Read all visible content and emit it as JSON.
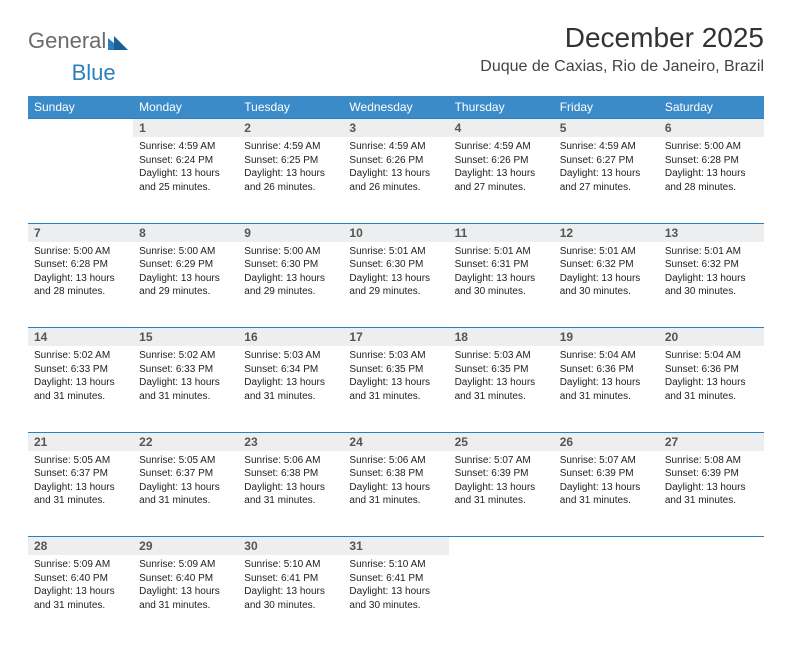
{
  "brand": {
    "part1": "General",
    "part2": "Blue",
    "logo_color": "#2a7fbf",
    "text_color": "#6b6b6b"
  },
  "title": "December 2025",
  "location": "Duque de Caxias, Rio de Janeiro, Brazil",
  "colors": {
    "header_bg": "#3b8bc9",
    "header_text": "#ffffff",
    "daynum_bg": "#eceeef",
    "accent_border": "#2a7fbf",
    "page_bg": "#ffffff"
  },
  "weekdays": [
    "Sunday",
    "Monday",
    "Tuesday",
    "Wednesday",
    "Thursday",
    "Friday",
    "Saturday"
  ],
  "weeks": [
    [
      null,
      {
        "n": "1",
        "sr": "Sunrise: 4:59 AM",
        "ss": "Sunset: 6:24 PM",
        "d1": "Daylight: 13 hours",
        "d2": "and 25 minutes."
      },
      {
        "n": "2",
        "sr": "Sunrise: 4:59 AM",
        "ss": "Sunset: 6:25 PM",
        "d1": "Daylight: 13 hours",
        "d2": "and 26 minutes."
      },
      {
        "n": "3",
        "sr": "Sunrise: 4:59 AM",
        "ss": "Sunset: 6:26 PM",
        "d1": "Daylight: 13 hours",
        "d2": "and 26 minutes."
      },
      {
        "n": "4",
        "sr": "Sunrise: 4:59 AM",
        "ss": "Sunset: 6:26 PM",
        "d1": "Daylight: 13 hours",
        "d2": "and 27 minutes."
      },
      {
        "n": "5",
        "sr": "Sunrise: 4:59 AM",
        "ss": "Sunset: 6:27 PM",
        "d1": "Daylight: 13 hours",
        "d2": "and 27 minutes."
      },
      {
        "n": "6",
        "sr": "Sunrise: 5:00 AM",
        "ss": "Sunset: 6:28 PM",
        "d1": "Daylight: 13 hours",
        "d2": "and 28 minutes."
      }
    ],
    [
      {
        "n": "7",
        "sr": "Sunrise: 5:00 AM",
        "ss": "Sunset: 6:28 PM",
        "d1": "Daylight: 13 hours",
        "d2": "and 28 minutes."
      },
      {
        "n": "8",
        "sr": "Sunrise: 5:00 AM",
        "ss": "Sunset: 6:29 PM",
        "d1": "Daylight: 13 hours",
        "d2": "and 29 minutes."
      },
      {
        "n": "9",
        "sr": "Sunrise: 5:00 AM",
        "ss": "Sunset: 6:30 PM",
        "d1": "Daylight: 13 hours",
        "d2": "and 29 minutes."
      },
      {
        "n": "10",
        "sr": "Sunrise: 5:01 AM",
        "ss": "Sunset: 6:30 PM",
        "d1": "Daylight: 13 hours",
        "d2": "and 29 minutes."
      },
      {
        "n": "11",
        "sr": "Sunrise: 5:01 AM",
        "ss": "Sunset: 6:31 PM",
        "d1": "Daylight: 13 hours",
        "d2": "and 30 minutes."
      },
      {
        "n": "12",
        "sr": "Sunrise: 5:01 AM",
        "ss": "Sunset: 6:32 PM",
        "d1": "Daylight: 13 hours",
        "d2": "and 30 minutes."
      },
      {
        "n": "13",
        "sr": "Sunrise: 5:01 AM",
        "ss": "Sunset: 6:32 PM",
        "d1": "Daylight: 13 hours",
        "d2": "and 30 minutes."
      }
    ],
    [
      {
        "n": "14",
        "sr": "Sunrise: 5:02 AM",
        "ss": "Sunset: 6:33 PM",
        "d1": "Daylight: 13 hours",
        "d2": "and 31 minutes."
      },
      {
        "n": "15",
        "sr": "Sunrise: 5:02 AM",
        "ss": "Sunset: 6:33 PM",
        "d1": "Daylight: 13 hours",
        "d2": "and 31 minutes."
      },
      {
        "n": "16",
        "sr": "Sunrise: 5:03 AM",
        "ss": "Sunset: 6:34 PM",
        "d1": "Daylight: 13 hours",
        "d2": "and 31 minutes."
      },
      {
        "n": "17",
        "sr": "Sunrise: 5:03 AM",
        "ss": "Sunset: 6:35 PM",
        "d1": "Daylight: 13 hours",
        "d2": "and 31 minutes."
      },
      {
        "n": "18",
        "sr": "Sunrise: 5:03 AM",
        "ss": "Sunset: 6:35 PM",
        "d1": "Daylight: 13 hours",
        "d2": "and 31 minutes."
      },
      {
        "n": "19",
        "sr": "Sunrise: 5:04 AM",
        "ss": "Sunset: 6:36 PM",
        "d1": "Daylight: 13 hours",
        "d2": "and 31 minutes."
      },
      {
        "n": "20",
        "sr": "Sunrise: 5:04 AM",
        "ss": "Sunset: 6:36 PM",
        "d1": "Daylight: 13 hours",
        "d2": "and 31 minutes."
      }
    ],
    [
      {
        "n": "21",
        "sr": "Sunrise: 5:05 AM",
        "ss": "Sunset: 6:37 PM",
        "d1": "Daylight: 13 hours",
        "d2": "and 31 minutes."
      },
      {
        "n": "22",
        "sr": "Sunrise: 5:05 AM",
        "ss": "Sunset: 6:37 PM",
        "d1": "Daylight: 13 hours",
        "d2": "and 31 minutes."
      },
      {
        "n": "23",
        "sr": "Sunrise: 5:06 AM",
        "ss": "Sunset: 6:38 PM",
        "d1": "Daylight: 13 hours",
        "d2": "and 31 minutes."
      },
      {
        "n": "24",
        "sr": "Sunrise: 5:06 AM",
        "ss": "Sunset: 6:38 PM",
        "d1": "Daylight: 13 hours",
        "d2": "and 31 minutes."
      },
      {
        "n": "25",
        "sr": "Sunrise: 5:07 AM",
        "ss": "Sunset: 6:39 PM",
        "d1": "Daylight: 13 hours",
        "d2": "and 31 minutes."
      },
      {
        "n": "26",
        "sr": "Sunrise: 5:07 AM",
        "ss": "Sunset: 6:39 PM",
        "d1": "Daylight: 13 hours",
        "d2": "and 31 minutes."
      },
      {
        "n": "27",
        "sr": "Sunrise: 5:08 AM",
        "ss": "Sunset: 6:39 PM",
        "d1": "Daylight: 13 hours",
        "d2": "and 31 minutes."
      }
    ],
    [
      {
        "n": "28",
        "sr": "Sunrise: 5:09 AM",
        "ss": "Sunset: 6:40 PM",
        "d1": "Daylight: 13 hours",
        "d2": "and 31 minutes."
      },
      {
        "n": "29",
        "sr": "Sunrise: 5:09 AM",
        "ss": "Sunset: 6:40 PM",
        "d1": "Daylight: 13 hours",
        "d2": "and 31 minutes."
      },
      {
        "n": "30",
        "sr": "Sunrise: 5:10 AM",
        "ss": "Sunset: 6:41 PM",
        "d1": "Daylight: 13 hours",
        "d2": "and 30 minutes."
      },
      {
        "n": "31",
        "sr": "Sunrise: 5:10 AM",
        "ss": "Sunset: 6:41 PM",
        "d1": "Daylight: 13 hours",
        "d2": "and 30 minutes."
      },
      null,
      null,
      null
    ]
  ]
}
